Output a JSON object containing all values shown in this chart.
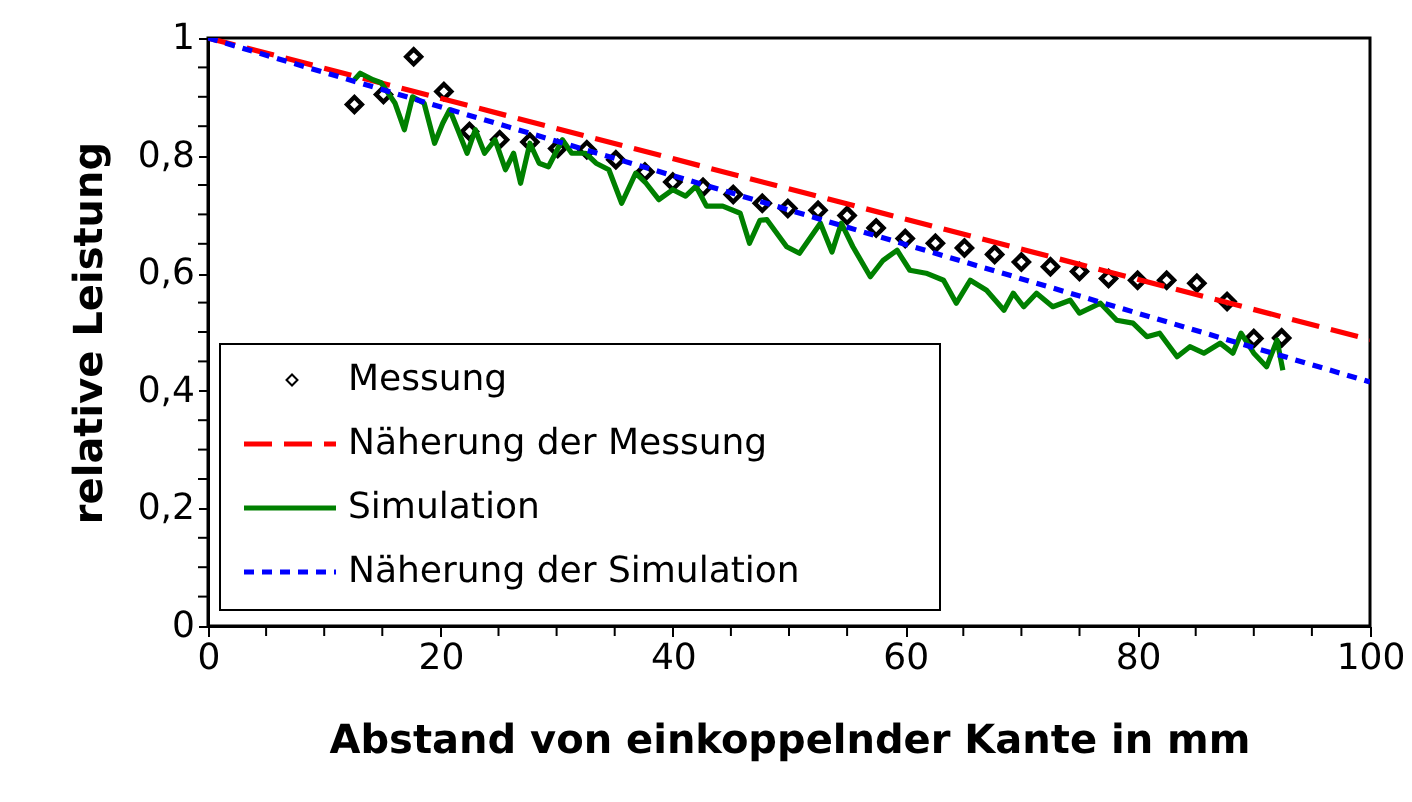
{
  "chart_data": {
    "type": "scatter",
    "xlabel": "Abstand von einkoppelnder Kante in mm",
    "ylabel": "relative Leistung",
    "xlim": [
      0,
      100
    ],
    "ylim": [
      0,
      1
    ],
    "xticks": [
      0,
      {
        "value": 5,
        "label": null
      },
      {
        "value": 10,
        "label": null
      },
      {
        "value": 15,
        "label": null
      },
      20,
      {
        "value": 25,
        "label": null
      },
      {
        "value": 30,
        "label": null
      },
      {
        "value": 35,
        "label": null
      },
      40,
      {
        "value": 45,
        "label": null
      },
      {
        "value": 50,
        "label": null
      },
      {
        "value": 55,
        "label": null
      },
      60,
      {
        "value": 65,
        "label": null
      },
      {
        "value": 70,
        "label": null
      },
      {
        "value": 75,
        "label": null
      },
      80,
      {
        "value": 85,
        "label": null
      },
      {
        "value": 90,
        "label": null
      },
      {
        "value": 95,
        "label": null
      },
      100
    ],
    "yticks": [
      0,
      {
        "value": 0.05,
        "label": null
      },
      {
        "value": 0.1,
        "label": null
      },
      {
        "value": 0.15,
        "label": null
      },
      {
        "value": 0.2,
        "label": "0,2"
      },
      {
        "value": 0.25,
        "label": null
      },
      {
        "value": 0.3,
        "label": null
      },
      {
        "value": 0.35,
        "label": null
      },
      {
        "value": 0.4,
        "label": "0,4"
      },
      {
        "value": 0.45,
        "label": null
      },
      {
        "value": 0.5,
        "label": null
      },
      {
        "value": 0.55,
        "label": null
      },
      {
        "value": 0.6,
        "label": "0,6"
      },
      {
        "value": 0.65,
        "label": null
      },
      {
        "value": 0.7,
        "label": null
      },
      {
        "value": 0.75,
        "label": null
      },
      {
        "value": 0.8,
        "label": "0,8"
      },
      {
        "value": 0.85,
        "label": null
      },
      {
        "value": 0.9,
        "label": null
      },
      {
        "value": 0.95,
        "label": null
      },
      1
    ],
    "grid": false,
    "legend": "bottom left",
    "series": [
      {
        "name": "Messung",
        "marker": "diamond",
        "color": "#000000",
        "x": [
          12.6,
          15.1,
          17.7,
          20.3,
          22.5,
          25.1,
          27.7,
          30.1,
          32.6,
          35.1,
          37.6,
          40.0,
          42.6,
          45.2,
          47.7,
          49.9,
          52.5,
          55.0,
          57.5,
          60.0,
          62.6,
          65.1,
          67.7,
          70.0,
          72.5,
          75.0,
          77.5,
          80.0,
          82.5,
          85.1,
          87.7,
          90.0,
          92.4
        ],
        "values": [
          0.887,
          0.904,
          0.968,
          0.909,
          0.841,
          0.827,
          0.823,
          0.812,
          0.81,
          0.793,
          0.772,
          0.755,
          0.746,
          0.734,
          0.719,
          0.71,
          0.707,
          0.698,
          0.677,
          0.659,
          0.651,
          0.643,
          0.632,
          0.619,
          0.611,
          0.603,
          0.591,
          0.588,
          0.588,
          0.583,
          0.552,
          0.489,
          0.49
        ]
      },
      {
        "name": "Näherung der Messung",
        "type": "line",
        "line_style": "dashed",
        "color": "#ff0000",
        "x": [
          0,
          100
        ],
        "values": [
          1.0,
          0.487
        ]
      },
      {
        "name": "Simulation",
        "type": "line",
        "line_style": "solid",
        "color": "#008000",
        "x": [
          12.6,
          13.1,
          14.2,
          14.9,
          16.1,
          16.9,
          17.6,
          18.6,
          19.5,
          20.2,
          20.8,
          21.5,
          22.3,
          23.0,
          23.8,
          24.7,
          25.6,
          26.3,
          26.9,
          27.7,
          28.5,
          29.3,
          30.5,
          31.3,
          32.5,
          33.4,
          34.5,
          35.6,
          36.8,
          37.7,
          38.8,
          40.0,
          41.1,
          42.0,
          42.9,
          44.3,
          45.8,
          46.6,
          47.5,
          48.1,
          49.8,
          50.9,
          52.7,
          53.7,
          54.5,
          55.5,
          57.0,
          58.1,
          59.3,
          60.4,
          61.8,
          63.3,
          64.4,
          65.6,
          67.0,
          68.5,
          69.3,
          70.2,
          71.3,
          72.7,
          74.2,
          75.0,
          76.8,
          78.2,
          79.6,
          80.8,
          81.9,
          83.4,
          84.5,
          85.7,
          87.1,
          88.2,
          88.9,
          90.0,
          91.1,
          92.0,
          92.5
        ],
        "values": [
          0.929,
          0.94,
          0.929,
          0.924,
          0.889,
          0.844,
          0.9,
          0.889,
          0.821,
          0.855,
          0.878,
          0.844,
          0.804,
          0.844,
          0.804,
          0.827,
          0.776,
          0.804,
          0.753,
          0.821,
          0.787,
          0.781,
          0.827,
          0.804,
          0.804,
          0.787,
          0.776,
          0.719,
          0.77,
          0.753,
          0.725,
          0.742,
          0.731,
          0.748,
          0.714,
          0.714,
          0.702,
          0.651,
          0.69,
          0.691,
          0.645,
          0.634,
          0.685,
          0.636,
          0.685,
          0.645,
          0.594,
          0.622,
          0.639,
          0.605,
          0.6,
          0.588,
          0.549,
          0.588,
          0.571,
          0.537,
          0.566,
          0.543,
          0.566,
          0.543,
          0.554,
          0.532,
          0.549,
          0.52,
          0.515,
          0.492,
          0.498,
          0.458,
          0.475,
          0.464,
          0.481,
          0.464,
          0.498,
          0.464,
          0.441,
          0.486,
          0.435
        ]
      },
      {
        "name": "Näherung der Simulation",
        "type": "line",
        "line_style": "dotted",
        "color": "#0000ff",
        "x": [
          0,
          100
        ],
        "values": [
          1.0,
          0.415
        ]
      }
    ]
  }
}
